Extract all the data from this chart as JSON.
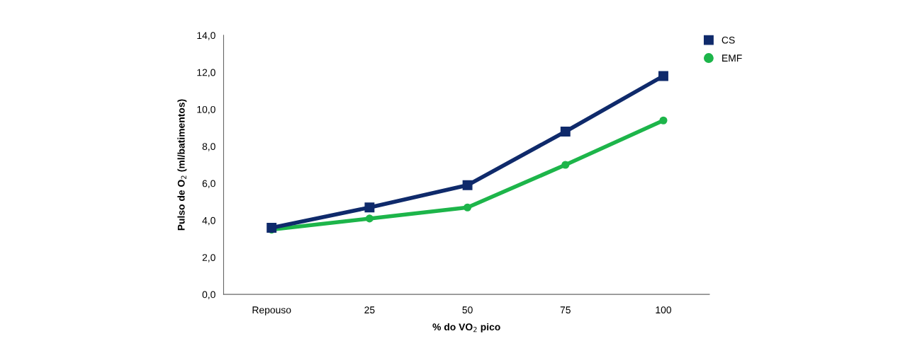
{
  "chart_data": {
    "type": "line",
    "xlabel": "% do VO$_{2}$ pico",
    "ylabel": "Pulso de O$_{2}$ (ml/batimentos)",
    "categories": [
      "Repouso",
      "25",
      "50",
      "75",
      "100"
    ],
    "series": [
      {
        "name": "CS",
        "color": "#0f2a6b",
        "marker": "square",
        "values": [
          3.6,
          4.7,
          5.9,
          8.8,
          11.8
        ]
      },
      {
        "name": "EMF",
        "color": "#1db54a",
        "marker": "circle",
        "values": [
          3.5,
          4.1,
          4.7,
          7.0,
          9.4
        ]
      }
    ],
    "ylim": [
      0,
      14
    ],
    "yticks": [
      {
        "value": 0,
        "label": "0,0"
      },
      {
        "value": 2,
        "label": "2,0"
      },
      {
        "value": 4,
        "label": "4,0"
      },
      {
        "value": 6,
        "label": "6,0"
      },
      {
        "value": 8,
        "label": "8,0"
      },
      {
        "value": 10,
        "label": "10,0"
      },
      {
        "value": 12,
        "label": "12,0"
      },
      {
        "value": 14,
        "label": "14,0"
      }
    ],
    "grid": false,
    "legend": "top right",
    "line_style": "solid"
  }
}
